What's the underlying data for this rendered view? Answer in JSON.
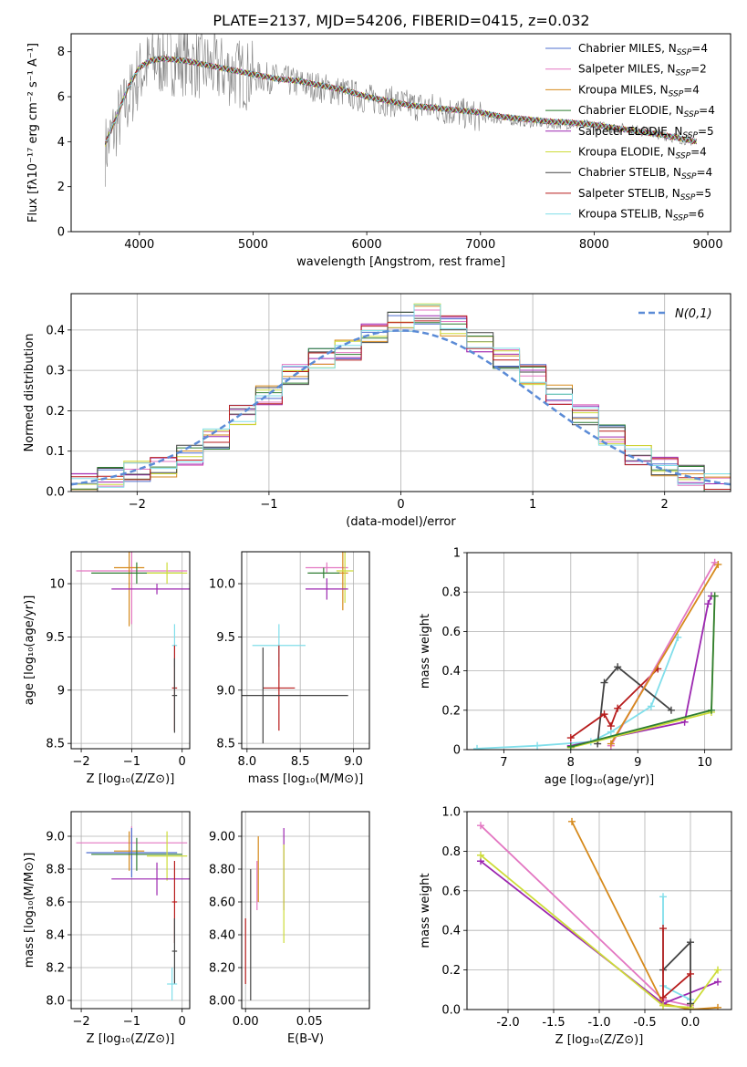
{
  "chart_data": [
    {
      "id": "spectrum",
      "type": "line",
      "title": "PLATE=2137, MJD=54206, FIBERID=0415, z=0.032",
      "xlabel": "wavelength [Angstrom, rest frame]",
      "ylabel": "Flux [fλ10⁻¹⁷ erg cm⁻² s⁻¹ A⁻¹]",
      "xlim": [
        3400,
        9200
      ],
      "ylim": [
        0,
        8.8
      ],
      "xticks": [
        4000,
        5000,
        6000,
        7000,
        8000,
        9000
      ],
      "yticks": [
        0,
        2,
        4,
        6,
        8
      ],
      "grid": false,
      "legend_position": "top-right",
      "data_color": "#808080",
      "data_x": [
        3700,
        3800,
        3900,
        4000,
        4100,
        4200,
        4400,
        4600,
        4800,
        5000,
        5200,
        5400,
        5600,
        5800,
        6000,
        6200,
        6400,
        6600,
        6800,
        7000,
        7200,
        7400,
        7600,
        7800,
        8000,
        8200,
        8400,
        8600,
        8800,
        8900
      ],
      "data_y": [
        3.6,
        4.8,
        5.8,
        7.0,
        7.5,
        7.6,
        7.6,
        7.3,
        7.1,
        6.9,
        6.8,
        6.6,
        6.4,
        6.2,
        5.9,
        5.8,
        5.6,
        5.5,
        5.3,
        5.1,
        5.0,
        4.9,
        4.8,
        4.8,
        4.7,
        4.6,
        4.5,
        4.3,
        4.1,
        4.0
      ],
      "model_x": [
        3700,
        3800,
        3900,
        4000,
        4100,
        4200,
        4400,
        4600,
        4800,
        5000,
        5200,
        5400,
        5600,
        5800,
        6000,
        6200,
        6400,
        6600,
        6800,
        7000,
        7200,
        7400,
        7600,
        7800,
        8000,
        8200,
        8400,
        8600,
        8800,
        8900
      ],
      "model_y": [
        3.9,
        5.1,
        6.4,
        7.3,
        7.6,
        7.7,
        7.6,
        7.4,
        7.2,
        7.0,
        6.8,
        6.7,
        6.5,
        6.3,
        6.0,
        5.8,
        5.6,
        5.5,
        5.4,
        5.3,
        5.1,
        5.0,
        4.9,
        4.85,
        4.75,
        4.6,
        4.45,
        4.3,
        4.1,
        4.0
      ],
      "series": [
        {
          "label_name": "Chabrier MILES, N",
          "label_sub": "SSP",
          "label_val": "=4",
          "color": "#4f6fcf"
        },
        {
          "label_name": "Salpeter MILES, N",
          "label_sub": "SSP",
          "label_val": "=2",
          "color": "#e377c2"
        },
        {
          "label_name": "Kroupa MILES, N",
          "label_sub": "SSP",
          "label_val": "=4",
          "color": "#d68a1c"
        },
        {
          "label_name": "Chabrier ELODIE, N",
          "label_sub": "SSP",
          "label_val": "=4",
          "color": "#2e7d32"
        },
        {
          "label_name": "Salpeter ELODIE, N",
          "label_sub": "SSP",
          "label_val": "=5",
          "color": "#9c27b0"
        },
        {
          "label_name": "Kroupa ELODIE, N",
          "label_sub": "SSP",
          "label_val": "=4",
          "color": "#cddc39"
        },
        {
          "label_name": "Chabrier STELIB, N",
          "label_sub": "SSP",
          "label_val": "=4",
          "color": "#444444"
        },
        {
          "label_name": "Salpeter STELIB, N",
          "label_sub": "SSP",
          "label_val": "=5",
          "color": "#b71c1c"
        },
        {
          "label_name": "Kroupa STELIB, N",
          "label_sub": "SSP",
          "label_val": "=6",
          "color": "#80deea"
        }
      ]
    },
    {
      "id": "residuals",
      "type": "line",
      "xlabel": "(data-model)/error",
      "ylabel": "Normed distribution",
      "xlim": [
        -2.5,
        2.5
      ],
      "ylim": [
        0,
        0.49
      ],
      "xticks": [
        -2,
        -1,
        0,
        1,
        2
      ],
      "yticks": [
        0.0,
        0.1,
        0.2,
        0.3,
        0.4
      ],
      "grid": true,
      "legend_position": "top-right",
      "reference_label": "N(0,1)",
      "reference_color": "#5b8bd6",
      "hist_bin_edges": [
        -2.5,
        -2.3,
        -2.1,
        -1.9,
        -1.7,
        -1.5,
        -1.3,
        -1.1,
        -0.9,
        -0.7,
        -0.5,
        -0.3,
        -0.1,
        0.1,
        0.3,
        0.5,
        0.7,
        0.9,
        1.1,
        1.3,
        1.5,
        1.7,
        1.9,
        2.1,
        2.3,
        2.5
      ],
      "hist_values": [
        0.02,
        0.035,
        0.05,
        0.06,
        0.09,
        0.13,
        0.19,
        0.24,
        0.29,
        0.33,
        0.35,
        0.39,
        0.42,
        0.44,
        0.41,
        0.37,
        0.33,
        0.29,
        0.24,
        0.19,
        0.14,
        0.09,
        0.06,
        0.04,
        0.02
      ],
      "series_colors": [
        "#4f6fcf",
        "#e377c2",
        "#d68a1c",
        "#2e7d32",
        "#9c27b0",
        "#cddc39",
        "#444444",
        "#b71c1c",
        "#80deea"
      ]
    },
    {
      "id": "age_vs_Z",
      "type": "scatter",
      "xlabel": "Z [log₁₀(Z/Z⊙)]",
      "ylabel": "age  [log₁₀(age/yr)]",
      "xlim": [
        -2.2,
        0.15
      ],
      "ylim": [
        8.45,
        10.3
      ],
      "xticks": [
        -2,
        -1,
        0
      ],
      "yticks": [
        8.5,
        9.0,
        9.5,
        10.0
      ],
      "grid": true,
      "points": [
        {
          "x": -1.0,
          "y": 10.12,
          "xerr": 1.1,
          "yerr": 0.5,
          "color": "#e377c2"
        },
        {
          "x": -1.05,
          "y": 10.15,
          "xerr": 0.3,
          "yerr": 0.55,
          "color": "#d68a1c"
        },
        {
          "x": -0.9,
          "y": 10.1,
          "xerr": 0.9,
          "yerr": 0.1,
          "color": "#2e7d32"
        },
        {
          "x": -0.3,
          "y": 10.1,
          "xerr": 0.4,
          "yerr": 0.1,
          "color": "#cddc39"
        },
        {
          "x": -0.5,
          "y": 9.95,
          "xerr": 0.9,
          "yerr": 0.05,
          "color": "#9c27b0"
        },
        {
          "x": -0.15,
          "y": 9.42,
          "xerr": 0.05,
          "yerr": 0.2,
          "color": "#80deea"
        },
        {
          "x": -0.15,
          "y": 9.02,
          "xerr": 0.05,
          "yerr": 0.4,
          "color": "#b71c1c"
        },
        {
          "x": -0.15,
          "y": 8.95,
          "xerr": 0.05,
          "yerr": 0.35,
          "color": "#444444"
        }
      ]
    },
    {
      "id": "age_vs_mass",
      "type": "scatter",
      "xlabel": "mass [log₁₀(M/M⊙)]",
      "ylabel": "",
      "xlim": [
        7.95,
        9.15
      ],
      "ylim": [
        8.45,
        10.3
      ],
      "xticks": [
        8.0,
        8.5,
        9.0
      ],
      "yticks": [
        8.5,
        9.0,
        9.5,
        10.0
      ],
      "grid": true,
      "points": [
        {
          "x": 8.75,
          "y": 10.15,
          "xerr": 0.2,
          "yerr": 0.05,
          "color": "#e377c2"
        },
        {
          "x": 8.9,
          "y": 10.1,
          "xerr": 0.05,
          "yerr": 0.35,
          "color": "#d68a1c"
        },
        {
          "x": 8.72,
          "y": 10.1,
          "xerr": 0.15,
          "yerr": 0.05,
          "color": "#2e7d32"
        },
        {
          "x": 8.92,
          "y": 10.12,
          "xerr": 0.08,
          "yerr": 0.3,
          "color": "#cddc39"
        },
        {
          "x": 8.75,
          "y": 9.95,
          "xerr": 0.2,
          "yerr": 0.1,
          "color": "#9c27b0"
        },
        {
          "x": 8.3,
          "y": 9.42,
          "xerr": 0.25,
          "yerr": 0.2,
          "color": "#80deea"
        },
        {
          "x": 8.3,
          "y": 9.02,
          "xerr": 0.15,
          "yerr": 0.4,
          "color": "#b71c1c"
        },
        {
          "x": 8.15,
          "y": 8.95,
          "xerr": 0.8,
          "yerr": 0.45,
          "color": "#444444"
        }
      ]
    },
    {
      "id": "mass_weight_vs_age",
      "type": "line",
      "xlabel": "age  [log₁₀(age/yr)]",
      "ylabel": "mass weight",
      "xlim": [
        6.45,
        10.4
      ],
      "ylim": [
        0,
        1.0
      ],
      "xticks": [
        7,
        8,
        9,
        10
      ],
      "yticks": [
        0.0,
        0.2,
        0.4,
        0.6,
        0.8,
        1.0
      ],
      "grid": true,
      "series": [
        {
          "color": "#80deea",
          "x": [
            6.6,
            7.5,
            8.3,
            8.6,
            9.2,
            9.6
          ],
          "y": [
            0.005,
            0.02,
            0.04,
            0.09,
            0.22,
            0.57
          ]
        },
        {
          "color": "#444444",
          "x": [
            8.4,
            8.5,
            8.7,
            9.5
          ],
          "y": [
            0.03,
            0.34,
            0.42,
            0.2
          ]
        },
        {
          "color": "#b71c1c",
          "x": [
            8.0,
            8.5,
            8.6,
            8.7,
            9.3
          ],
          "y": [
            0.06,
            0.18,
            0.12,
            0.21,
            0.41
          ]
        },
        {
          "color": "#e377c2",
          "x": [
            8.6,
            10.15
          ],
          "y": [
            0.02,
            0.95
          ]
        },
        {
          "color": "#d68a1c",
          "x": [
            8.6,
            10.2
          ],
          "y": [
            0.03,
            0.94
          ]
        },
        {
          "color": "#9c27b0",
          "x": [
            8.0,
            9.7,
            10.05,
            10.1
          ],
          "y": [
            0.02,
            0.14,
            0.74,
            0.78
          ]
        },
        {
          "color": "#cddc39",
          "x": [
            8.0,
            10.1,
            10.15
          ],
          "y": [
            0.01,
            0.19,
            0.78
          ]
        },
        {
          "color": "#2e7d32",
          "x": [
            8.0,
            10.1,
            10.15
          ],
          "y": [
            0.015,
            0.2,
            0.78
          ]
        }
      ]
    },
    {
      "id": "mass_vs_Z",
      "type": "scatter",
      "xlabel": "Z [log₁₀(Z/Z⊙)]",
      "ylabel": "mass [log₁₀(M/M⊙)]",
      "xlim": [
        -2.2,
        0.15
      ],
      "ylim": [
        7.95,
        9.15
      ],
      "xticks": [
        -2,
        -1,
        0
      ],
      "yticks": [
        8.0,
        8.2,
        8.4,
        8.6,
        8.8,
        9.0
      ],
      "grid": true,
      "points": [
        {
          "x": -1.0,
          "y": 8.96,
          "xerr": 1.1,
          "yerr": 0.1,
          "color": "#e377c2"
        },
        {
          "x": -1.05,
          "y": 8.91,
          "xerr": 0.3,
          "yerr": 0.12,
          "color": "#d68a1c"
        },
        {
          "x": -1.0,
          "y": 8.9,
          "xerr": 0.9,
          "yerr": 0.15,
          "color": "#4f6fcf"
        },
        {
          "x": -0.9,
          "y": 8.89,
          "xerr": 0.9,
          "yerr": 0.1,
          "color": "#2e7d32"
        },
        {
          "x": -0.3,
          "y": 8.88,
          "xerr": 0.4,
          "yerr": 0.15,
          "color": "#cddc39"
        },
        {
          "x": -0.5,
          "y": 8.74,
          "xerr": 0.9,
          "yerr": 0.1,
          "color": "#9c27b0"
        },
        {
          "x": -0.15,
          "y": 8.6,
          "xerr": 0.05,
          "yerr": 0.25,
          "color": "#b71c1c"
        },
        {
          "x": -0.15,
          "y": 8.3,
          "xerr": 0.05,
          "yerr": 0.2,
          "color": "#444444"
        },
        {
          "x": -0.2,
          "y": 8.1,
          "xerr": 0.1,
          "yerr": 0.1,
          "color": "#80deea"
        }
      ]
    },
    {
      "id": "mass_vs_ebv",
      "type": "scatter",
      "xlabel": "E(B-V)",
      "ylabel": "",
      "xlim": [
        -0.003,
        0.097
      ],
      "ylim": [
        7.95,
        9.15
      ],
      "xticks": [
        0.0,
        0.05
      ],
      "yticks": [
        8.0,
        8.2,
        8.4,
        8.6,
        8.8,
        9.0
      ],
      "grid": true,
      "points": [
        {
          "x": 0.0,
          "y": 8.3,
          "xerr": 0,
          "yerr": 0.2,
          "color": "#b71c1c"
        },
        {
          "x": 0.004,
          "y": 8.4,
          "xerr": 0,
          "yerr": 0.4,
          "color": "#444444"
        },
        {
          "x": 0.01,
          "y": 8.8,
          "xerr": 0,
          "yerr": 0.2,
          "color": "#d68a1c"
        },
        {
          "x": 0.009,
          "y": 8.7,
          "xerr": 0,
          "yerr": 0.15,
          "color": "#e377c2"
        },
        {
          "x": 0.03,
          "y": 8.8,
          "xerr": 0,
          "yerr": 0.25,
          "color": "#9c27b0"
        },
        {
          "x": 0.03,
          "y": 8.65,
          "xerr": 0,
          "yerr": 0.3,
          "color": "#cddc39"
        },
        {
          "x": 0.097,
          "y": 8.3,
          "xerr": 0,
          "yerr": 0.25,
          "color": "#80deea"
        }
      ]
    },
    {
      "id": "mass_weight_vs_Z",
      "type": "line",
      "xlabel": "Z [log₁₀(Z/Z⊙)]",
      "ylabel": "mass weight",
      "xlim": [
        -2.45,
        0.45
      ],
      "ylim": [
        0,
        1.0
      ],
      "xticks": [
        -2.0,
        -1.5,
        -1.0,
        -0.5,
        0.0
      ],
      "yticks": [
        0.0,
        0.2,
        0.4,
        0.6,
        0.8,
        1.0
      ],
      "grid": true,
      "series": [
        {
          "color": "#e377c2",
          "x": [
            -2.3,
            -0.3,
            0.0
          ],
          "y": [
            0.93,
            0.05,
            0.02
          ]
        },
        {
          "color": "#d68a1c",
          "x": [
            -1.3,
            -0.3,
            0.0,
            0.3
          ],
          "y": [
            0.95,
            0.03,
            0.0,
            0.01
          ]
        },
        {
          "color": "#9c27b0",
          "x": [
            -2.3,
            -0.3,
            0.3
          ],
          "y": [
            0.75,
            0.03,
            0.14
          ]
        },
        {
          "color": "#cddc39",
          "x": [
            -2.3,
            -0.3,
            0.0,
            0.3
          ],
          "y": [
            0.78,
            0.02,
            0.01,
            0.2
          ]
        },
        {
          "color": "#80deea",
          "x": [
            -0.3,
            -0.3,
            0.0
          ],
          "y": [
            0.57,
            0.12,
            0.05
          ]
        },
        {
          "color": "#444444",
          "x": [
            -0.3,
            0.0,
            0.0
          ],
          "y": [
            0.2,
            0.34,
            0.03
          ]
        },
        {
          "color": "#b71c1c",
          "x": [
            -0.3,
            -0.3,
            0.0
          ],
          "y": [
            0.41,
            0.06,
            0.18
          ]
        }
      ]
    }
  ]
}
